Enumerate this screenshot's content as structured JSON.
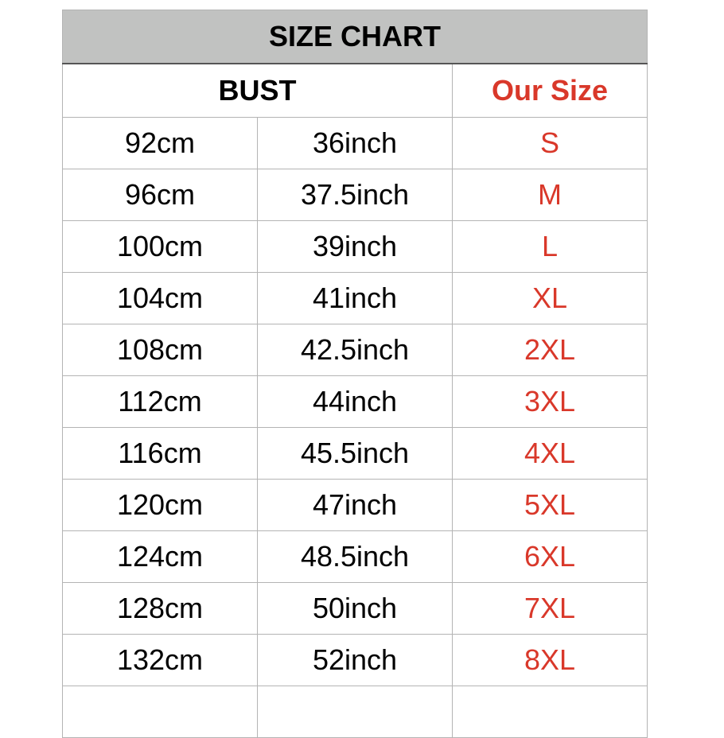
{
  "title": "SIZE CHART",
  "headers": {
    "bust": "BUST",
    "our_size": "Our Size"
  },
  "colors": {
    "title_bg": "#c1c2c1",
    "size_text": "#d9382a"
  },
  "rows": [
    {
      "cm": "92cm",
      "inch": "36inch",
      "size": "S"
    },
    {
      "cm": "96cm",
      "inch": "37.5inch",
      "size": "M"
    },
    {
      "cm": "100cm",
      "inch": "39inch",
      "size": "L"
    },
    {
      "cm": "104cm",
      "inch": "41inch",
      "size": "XL"
    },
    {
      "cm": "108cm",
      "inch": "42.5inch",
      "size": "2XL"
    },
    {
      "cm": "112cm",
      "inch": "44inch",
      "size": "3XL"
    },
    {
      "cm": "116cm",
      "inch": "45.5inch",
      "size": "4XL"
    },
    {
      "cm": "120cm",
      "inch": "47inch",
      "size": "5XL"
    },
    {
      "cm": "124cm",
      "inch": "48.5inch",
      "size": "6XL"
    },
    {
      "cm": "128cm",
      "inch": "50inch",
      "size": "7XL"
    },
    {
      "cm": "132cm",
      "inch": "52inch",
      "size": "8XL"
    }
  ]
}
